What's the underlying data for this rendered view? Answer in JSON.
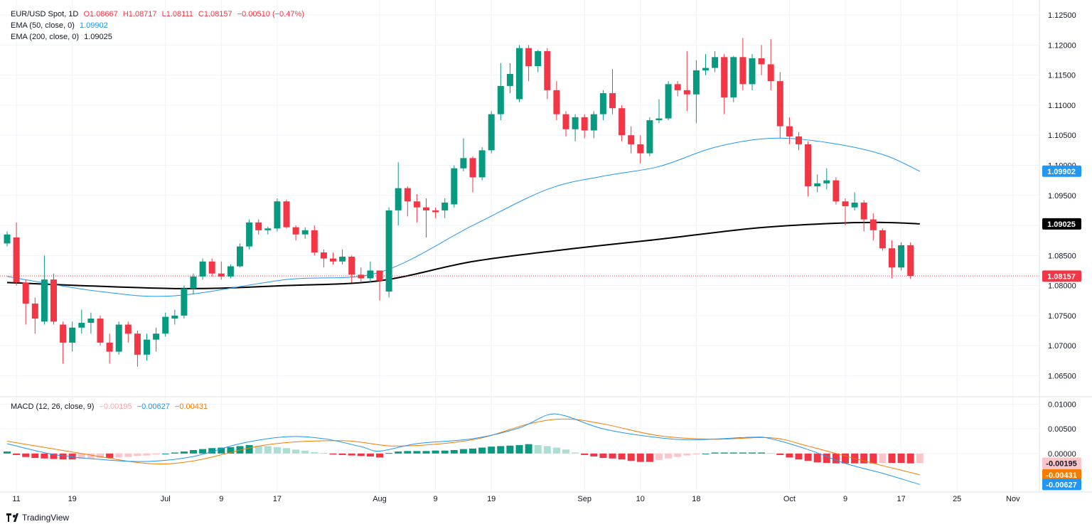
{
  "legend": {
    "symbol": "EUR/USD Spot, 1D",
    "open": "O1.08667",
    "high": "H1.08717",
    "low": "L1.08111",
    "close": "C1.08157",
    "change": "−0.00510 (−0.47%)",
    "ema50_label": "EMA (50, close, 0)",
    "ema50_value": "1.09902",
    "ema200_label": "EMA (200, close, 0)",
    "ema200_value": "1.09025",
    "macd_label": "MACD (12, 26, close, 9)",
    "macd_hist": "−0.00195",
    "macd_line": "−0.00627",
    "macd_signal": "−0.00431"
  },
  "price_labels": {
    "ema50": "1.09902",
    "ema200": "1.09025",
    "last": "1.08157",
    "macd_hist": "-0.00195",
    "macd_signal": "-0.00431",
    "macd_line": "-0.00627"
  },
  "price_axis_ticks": [
    "1.12500",
    "1.12000",
    "1.11500",
    "1.11000",
    "1.10500",
    "1.10000",
    "1.09500",
    "1.09000",
    "1.08500",
    "1.08000",
    "1.07500",
    "1.07000",
    "1.06500"
  ],
  "macd_axis_ticks": [
    "0.01000",
    "0.00500",
    "0.00000"
  ],
  "time_axis": [
    {
      "label": "11",
      "i": 1
    },
    {
      "label": "19",
      "i": 7
    },
    {
      "label": "Jul",
      "i": 17
    },
    {
      "label": "9",
      "i": 23
    },
    {
      "label": "17",
      "i": 29
    },
    {
      "label": "Aug",
      "i": 40
    },
    {
      "label": "9",
      "i": 46
    },
    {
      "label": "19",
      "i": 52
    },
    {
      "label": "Sep",
      "i": 62
    },
    {
      "label": "10",
      "i": 68
    },
    {
      "label": "18",
      "i": 74
    },
    {
      "label": "Oct",
      "i": 84
    },
    {
      "label": "9",
      "i": 90
    },
    {
      "label": "17",
      "i": 96
    },
    {
      "label": "25",
      "i": 102
    },
    {
      "label": "Nov",
      "i": 108
    }
  ],
  "colors": {
    "up": "#089981",
    "down": "#f23645",
    "ema50": "#2196f3",
    "ema200": "#000000",
    "signal": "#f57c00",
    "hist_up_strong": "#089981",
    "hist_up_weak": "#acdfd4",
    "hist_down_strong": "#f23645",
    "hist_down_weak": "#fbc5c9"
  },
  "brand": "TradingView",
  "chart_data": [
    {
      "type": "candlestick",
      "title": "EUR/USD Spot, 1D",
      "ylim": [
        1.0615,
        1.1275
      ],
      "candles": [
        {
          "o": 1.087,
          "h": 1.089,
          "l": 1.0865,
          "c": 1.0885
        },
        {
          "o": 1.088,
          "h": 1.0905,
          "l": 1.08,
          "c": 1.0805
        },
        {
          "o": 1.0805,
          "h": 1.081,
          "l": 1.0735,
          "c": 1.077
        },
        {
          "o": 1.077,
          "h": 1.078,
          "l": 1.072,
          "c": 1.0745
        },
        {
          "o": 1.074,
          "h": 1.085,
          "l": 1.0735,
          "c": 1.081
        },
        {
          "o": 1.081,
          "h": 1.082,
          "l": 1.0735,
          "c": 1.074
        },
        {
          "o": 1.0735,
          "h": 1.074,
          "l": 1.067,
          "c": 1.0705
        },
        {
          "o": 1.0705,
          "h": 1.074,
          "l": 1.069,
          "c": 1.073
        },
        {
          "o": 1.073,
          "h": 1.076,
          "l": 1.072,
          "c": 1.0738
        },
        {
          "o": 1.0738,
          "h": 1.0755,
          "l": 1.072,
          "c": 1.0745
        },
        {
          "o": 1.0745,
          "h": 1.075,
          "l": 1.07,
          "c": 1.0705
        },
        {
          "o": 1.0705,
          "h": 1.072,
          "l": 1.067,
          "c": 1.069
        },
        {
          "o": 1.069,
          "h": 1.074,
          "l": 1.0685,
          "c": 1.0735
        },
        {
          "o": 1.0735,
          "h": 1.074,
          "l": 1.0705,
          "c": 1.072
        },
        {
          "o": 1.072,
          "h": 1.0725,
          "l": 1.0665,
          "c": 1.0685
        },
        {
          "o": 1.0685,
          "h": 1.072,
          "l": 1.0675,
          "c": 1.071
        },
        {
          "o": 1.071,
          "h": 1.073,
          "l": 1.069,
          "c": 1.072
        },
        {
          "o": 1.072,
          "h": 1.0755,
          "l": 1.0715,
          "c": 1.0748
        },
        {
          "o": 1.0745,
          "h": 1.076,
          "l": 1.0735,
          "c": 1.075
        },
        {
          "o": 1.075,
          "h": 1.08,
          "l": 1.0745,
          "c": 1.0795
        },
        {
          "o": 1.0795,
          "h": 1.082,
          "l": 1.0785,
          "c": 1.0815
        },
        {
          "o": 1.0815,
          "h": 1.0845,
          "l": 1.081,
          "c": 1.084
        },
        {
          "o": 1.084,
          "h": 1.0845,
          "l": 1.0815,
          "c": 1.082
        },
        {
          "o": 1.082,
          "h": 1.084,
          "l": 1.081,
          "c": 1.0815
        },
        {
          "o": 1.0815,
          "h": 1.0835,
          "l": 1.0812,
          "c": 1.0832
        },
        {
          "o": 1.0832,
          "h": 1.087,
          "l": 1.083,
          "c": 1.0865
        },
        {
          "o": 1.0865,
          "h": 1.091,
          "l": 1.086,
          "c": 1.0905
        },
        {
          "o": 1.0905,
          "h": 1.091,
          "l": 1.0885,
          "c": 1.0892
        },
        {
          "o": 1.0892,
          "h": 1.0898,
          "l": 1.0885,
          "c": 1.0895
        },
        {
          "o": 1.0895,
          "h": 1.0945,
          "l": 1.089,
          "c": 1.094
        },
        {
          "o": 1.094,
          "h": 1.0943,
          "l": 1.0895,
          "c": 1.0897
        },
        {
          "o": 1.0897,
          "h": 1.09,
          "l": 1.0875,
          "c": 1.0885
        },
        {
          "o": 1.0885,
          "h": 1.0897,
          "l": 1.0878,
          "c": 1.0892
        },
        {
          "o": 1.0892,
          "h": 1.09,
          "l": 1.085,
          "c": 1.0855
        },
        {
          "o": 1.0855,
          "h": 1.086,
          "l": 1.083,
          "c": 1.0845
        },
        {
          "o": 1.0845,
          "h": 1.0855,
          "l": 1.0835,
          "c": 1.084
        },
        {
          "o": 1.084,
          "h": 1.086,
          "l": 1.0835,
          "c": 1.0848
        },
        {
          "o": 1.0848,
          "h": 1.085,
          "l": 1.0805,
          "c": 1.0818
        },
        {
          "o": 1.0818,
          "h": 1.083,
          "l": 1.0805,
          "c": 1.0812
        },
        {
          "o": 1.0812,
          "h": 1.084,
          "l": 1.0805,
          "c": 1.0825
        },
        {
          "o": 1.0825,
          "h": 1.0825,
          "l": 1.0775,
          "c": 1.0808
        },
        {
          "o": 1.079,
          "h": 1.093,
          "l": 1.078,
          "c": 1.0925
        },
        {
          "o": 1.0925,
          "h": 1.1005,
          "l": 1.09,
          "c": 1.0962
        },
        {
          "o": 1.0962,
          "h": 1.0965,
          "l": 1.0915,
          "c": 1.094
        },
        {
          "o": 1.094,
          "h": 1.0952,
          "l": 1.0905,
          "c": 1.093
        },
        {
          "o": 1.093,
          "h": 1.0945,
          "l": 1.088,
          "c": 1.0925
        },
        {
          "o": 1.0925,
          "h": 1.093,
          "l": 1.0912,
          "c": 1.0922
        },
        {
          "o": 1.0925,
          "h": 1.0945,
          "l": 1.0912,
          "c": 1.0938
        },
        {
          "o": 1.0935,
          "h": 1.1,
          "l": 1.093,
          "c": 1.0995
        },
        {
          "o": 1.0995,
          "h": 1.1045,
          "l": 1.099,
          "c": 1.1012
        },
        {
          "o": 1.1012,
          "h": 1.1015,
          "l": 1.0955,
          "c": 1.098
        },
        {
          "o": 1.098,
          "h": 1.103,
          "l": 1.0975,
          "c": 1.1025
        },
        {
          "o": 1.1025,
          "h": 1.109,
          "l": 1.102,
          "c": 1.1085
        },
        {
          "o": 1.1085,
          "h": 1.117,
          "l": 1.1075,
          "c": 1.1132
        },
        {
          "o": 1.1132,
          "h": 1.117,
          "l": 1.112,
          "c": 1.1152
        },
        {
          "o": 1.111,
          "h": 1.12,
          "l": 1.1105,
          "c": 1.1195
        },
        {
          "o": 1.1195,
          "h": 1.12,
          "l": 1.114,
          "c": 1.1165
        },
        {
          "o": 1.1165,
          "h": 1.1192,
          "l": 1.1155,
          "c": 1.119
        },
        {
          "o": 1.119,
          "h": 1.1195,
          "l": 1.111,
          "c": 1.1125
        },
        {
          "o": 1.1125,
          "h": 1.114,
          "l": 1.1075,
          "c": 1.1085
        },
        {
          "o": 1.1085,
          "h": 1.109,
          "l": 1.1048,
          "c": 1.106
        },
        {
          "o": 1.106,
          "h": 1.1085,
          "l": 1.104,
          "c": 1.108
        },
        {
          "o": 1.108,
          "h": 1.1085,
          "l": 1.1045,
          "c": 1.1058
        },
        {
          "o": 1.1058,
          "h": 1.109,
          "l": 1.1045,
          "c": 1.1085
        },
        {
          "o": 1.1085,
          "h": 1.1125,
          "l": 1.1075,
          "c": 1.112
        },
        {
          "o": 1.112,
          "h": 1.116,
          "l": 1.1085,
          "c": 1.1095
        },
        {
          "o": 1.1095,
          "h": 1.11,
          "l": 1.104,
          "c": 1.105
        },
        {
          "o": 1.105,
          "h": 1.1065,
          "l": 1.102,
          "c": 1.1035
        },
        {
          "o": 1.1035,
          "h": 1.105,
          "l": 1.1003,
          "c": 1.102
        },
        {
          "o": 1.102,
          "h": 1.108,
          "l": 1.1015,
          "c": 1.1075
        },
        {
          "o": 1.1075,
          "h": 1.111,
          "l": 1.107,
          "c": 1.1078
        },
        {
          "o": 1.1078,
          "h": 1.114,
          "l": 1.1075,
          "c": 1.1135
        },
        {
          "o": 1.1135,
          "h": 1.114,
          "l": 1.1115,
          "c": 1.1125
        },
        {
          "o": 1.1125,
          "h": 1.119,
          "l": 1.109,
          "c": 1.1118
        },
        {
          "o": 1.1118,
          "h": 1.1175,
          "l": 1.107,
          "c": 1.1158
        },
        {
          "o": 1.1158,
          "h": 1.1185,
          "l": 1.115,
          "c": 1.1162
        },
        {
          "o": 1.1162,
          "h": 1.119,
          "l": 1.1155,
          "c": 1.118
        },
        {
          "o": 1.118,
          "h": 1.1185,
          "l": 1.1085,
          "c": 1.1113
        },
        {
          "o": 1.1113,
          "h": 1.1182,
          "l": 1.1105,
          "c": 1.118
        },
        {
          "o": 1.118,
          "h": 1.1212,
          "l": 1.1125,
          "c": 1.1135
        },
        {
          "o": 1.1135,
          "h": 1.1185,
          "l": 1.1125,
          "c": 1.1178
        },
        {
          "o": 1.1178,
          "h": 1.12,
          "l": 1.115,
          "c": 1.1168
        },
        {
          "o": 1.1168,
          "h": 1.121,
          "l": 1.1125,
          "c": 1.114
        },
        {
          "o": 1.114,
          "h": 1.1155,
          "l": 1.1045,
          "c": 1.1065
        },
        {
          "o": 1.1065,
          "h": 1.108,
          "l": 1.1035,
          "c": 1.1048
        },
        {
          "o": 1.1048,
          "h": 1.1055,
          "l": 1.1025,
          "c": 1.1035
        },
        {
          "o": 1.1035,
          "h": 1.104,
          "l": 1.0948,
          "c": 1.0965
        },
        {
          "o": 1.0965,
          "h": 1.0985,
          "l": 1.0955,
          "c": 1.097
        },
        {
          "o": 1.097,
          "h": 1.0995,
          "l": 1.096,
          "c": 1.0975
        },
        {
          "o": 1.0975,
          "h": 1.098,
          "l": 1.0935,
          "c": 1.094
        },
        {
          "o": 1.094,
          "h": 1.0945,
          "l": 1.09,
          "c": 1.0932
        },
        {
          "o": 1.093,
          "h": 1.0955,
          "l": 1.0925,
          "c": 1.0938
        },
        {
          "o": 1.0938,
          "h": 1.0942,
          "l": 1.089,
          "c": 1.091
        },
        {
          "o": 1.091,
          "h": 1.092,
          "l": 1.0875,
          "c": 1.0892
        },
        {
          "o": 1.0892,
          "h": 1.0895,
          "l": 1.0858,
          "c": 1.0862
        },
        {
          "o": 1.0862,
          "h": 1.0875,
          "l": 1.0812,
          "c": 1.083
        },
        {
          "o": 1.083,
          "h": 1.0872,
          "l": 1.0825,
          "c": 1.0867
        },
        {
          "o": 1.0867,
          "h": 1.0872,
          "l": 1.0811,
          "c": 1.0816
        }
      ],
      "ema50": [
        [
          0,
          1.0815
        ],
        [
          10,
          1.079
        ],
        [
          18,
          1.0783
        ],
        [
          30,
          1.081
        ],
        [
          40,
          1.0822
        ],
        [
          50,
          1.09
        ],
        [
          58,
          1.096
        ],
        [
          64,
          1.0982
        ],
        [
          70,
          1.0998
        ],
        [
          76,
          1.103
        ],
        [
          82,
          1.1045
        ],
        [
          88,
          1.1038
        ],
        [
          94,
          1.1018
        ],
        [
          98,
          1.099
        ]
      ],
      "ema200": [
        [
          0,
          1.0805
        ],
        [
          18,
          1.0795
        ],
        [
          30,
          1.08
        ],
        [
          40,
          1.0808
        ],
        [
          50,
          1.084
        ],
        [
          60,
          1.086
        ],
        [
          70,
          1.0877
        ],
        [
          80,
          1.0895
        ],
        [
          88,
          1.0903
        ],
        [
          94,
          1.0905
        ],
        [
          98,
          1.09025
        ]
      ]
    },
    {
      "type": "bar",
      "title": "MACD (12, 26, close, 9)",
      "ylim": [
        -0.0078,
        0.0115
      ],
      "histogram": [
        0.0004,
        -0.0003,
        -0.0007,
        -0.0009,
        -0.001,
        -0.0011,
        -0.0012,
        -0.0012,
        -0.0011,
        -0.001,
        -0.0009,
        -0.0009,
        -0.0008,
        -0.0007,
        -0.0005,
        -0.0004,
        -0.0002,
        0.0,
        0.0002,
        0.0004,
        0.0007,
        0.0009,
        0.0011,
        0.0012,
        0.0013,
        0.0015,
        0.0017,
        0.0016,
        0.0015,
        0.0013,
        0.0011,
        0.0008,
        0.0006,
        0.0003,
        0.0001,
        -0.0002,
        -0.0003,
        -0.0004,
        -0.0005,
        -0.0006,
        -0.0008,
        0.0001,
        0.0004,
        0.0005,
        0.0005,
        0.0005,
        0.0006,
        0.0006,
        0.0007,
        0.0009,
        0.001,
        0.0012,
        0.0014,
        0.0015,
        0.0016,
        0.0017,
        0.0019,
        0.0017,
        0.0015,
        0.0012,
        0.0008,
        0.0002,
        -0.0003,
        -0.0006,
        -0.0009,
        -0.001,
        -0.0012,
        -0.0015,
        -0.0017,
        -0.0017,
        -0.0013,
        -0.001,
        -0.0007,
        -0.0004,
        -0.0002,
        0.0,
        0.0002,
        0.0002,
        0.0002,
        0.0002,
        0.0002,
        0.0002,
        0.0001,
        -0.0003,
        -0.0008,
        -0.0012,
        -0.0015,
        -0.0018,
        -0.0019,
        -0.002,
        -0.002,
        -0.002,
        -0.002,
        -0.002,
        -0.0019,
        -0.0019,
        -0.0019,
        -0.002,
        -0.00195
      ],
      "macd": [
        [
          0,
          0.002
        ],
        [
          5,
          -0.0002
        ],
        [
          10,
          -0.0012
        ],
        [
          15,
          -0.0016
        ],
        [
          20,
          -0.0006
        ],
        [
          25,
          0.002
        ],
        [
          30,
          0.0034
        ],
        [
          34,
          0.003
        ],
        [
          38,
          0.0014
        ],
        [
          40,
          0.0005
        ],
        [
          44,
          0.002
        ],
        [
          50,
          0.003
        ],
        [
          55,
          0.0052
        ],
        [
          58,
          0.0078
        ],
        [
          60,
          0.0076
        ],
        [
          64,
          0.005
        ],
        [
          70,
          0.0032
        ],
        [
          74,
          0.0028
        ],
        [
          80,
          0.0033
        ],
        [
          82,
          0.003
        ],
        [
          86,
          0.0008
        ],
        [
          90,
          -0.002
        ],
        [
          94,
          -0.004
        ],
        [
          98,
          -0.00627
        ]
      ],
      "signal": [
        [
          0,
          0.0025
        ],
        [
          8,
          0.0
        ],
        [
          15,
          -0.002
        ],
        [
          20,
          -0.0015
        ],
        [
          28,
          0.0018
        ],
        [
          36,
          0.0026
        ],
        [
          42,
          0.0015
        ],
        [
          50,
          0.0028
        ],
        [
          56,
          0.006
        ],
        [
          60,
          0.007
        ],
        [
          64,
          0.006
        ],
        [
          70,
          0.0036
        ],
        [
          76,
          0.0029
        ],
        [
          82,
          0.0032
        ],
        [
          86,
          0.0015
        ],
        [
          92,
          -0.0015
        ],
        [
          98,
          -0.00431
        ]
      ]
    }
  ]
}
